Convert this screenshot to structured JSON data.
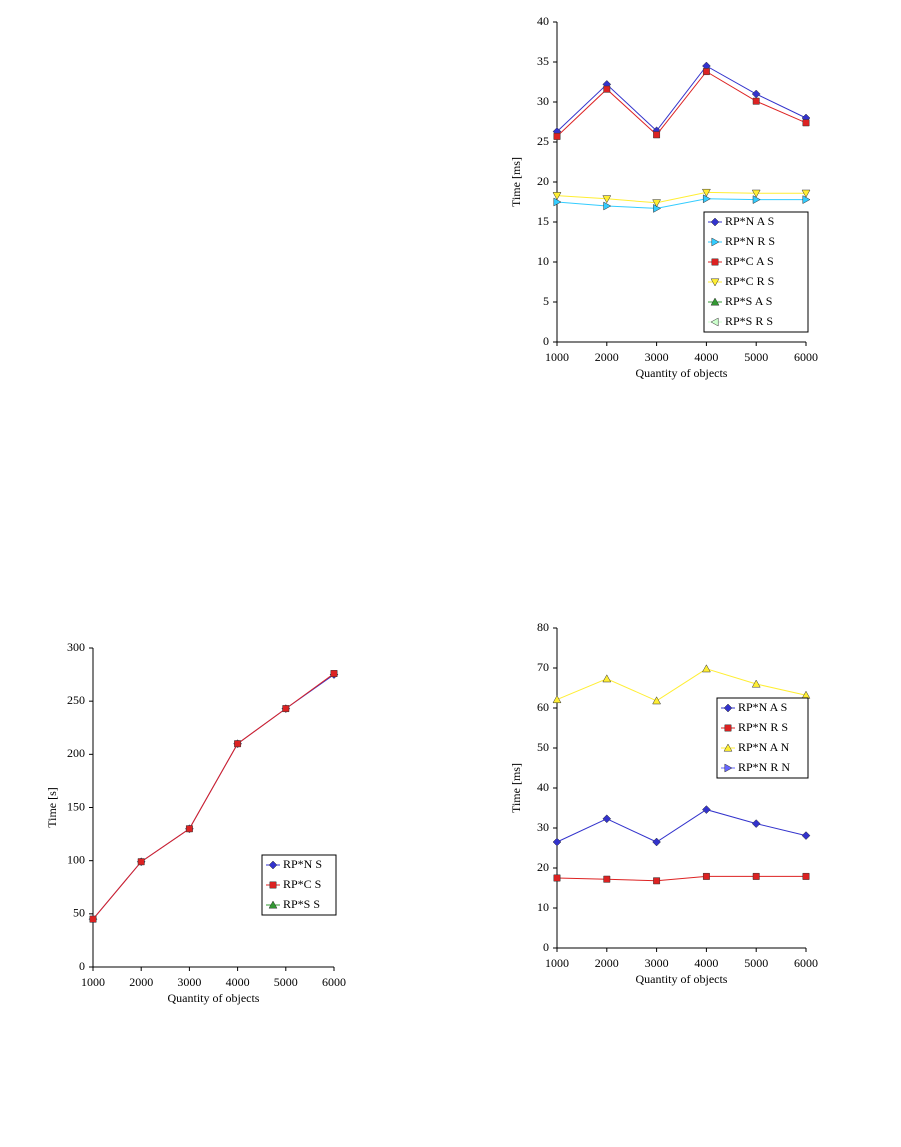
{
  "chart_data": [
    {
      "type": "line",
      "xlabel": "Quantity of objects",
      "ylabel": "Time [ms]",
      "x": [
        1000,
        2000,
        3000,
        4000,
        5000,
        6000
      ],
      "xlim": [
        1000,
        6000
      ],
      "xticks": [
        1000,
        2000,
        3000,
        4000,
        5000,
        6000
      ],
      "ylim": [
        0,
        40
      ],
      "yticks": [
        0,
        5,
        10,
        15,
        20,
        25,
        30,
        35,
        40
      ],
      "legend": "lower right",
      "series": [
        {
          "name": "RP*N A S",
          "color": "#3333cc",
          "marker": "diamond",
          "values": [
            26.3,
            32.2,
            26.4,
            34.5,
            31.0,
            28.0
          ]
        },
        {
          "name": "RP*N R S",
          "color": "#33ccff",
          "marker": "triangle-right",
          "values": [
            17.5,
            17.0,
            16.7,
            17.9,
            17.8,
            17.8
          ]
        },
        {
          "name": "RP*C A S",
          "color": "#dd2222",
          "marker": "square",
          "values": [
            25.7,
            31.6,
            25.9,
            33.8,
            30.1,
            27.4
          ]
        },
        {
          "name": "RP*C R S",
          "color": "#ffee33",
          "marker": "triangle-down",
          "values": [
            18.3,
            17.9,
            17.4,
            18.7,
            18.6,
            18.6
          ]
        },
        {
          "name": "RP*S A S",
          "color": "#339933",
          "marker": "triangle-up",
          "values": [
            null,
            null,
            null,
            null,
            null,
            null
          ]
        },
        {
          "name": "RP*S R S",
          "color": "#ccffcc",
          "marker": "triangle-left",
          "values": [
            null,
            null,
            null,
            null,
            null,
            null
          ]
        }
      ]
    },
    {
      "type": "line",
      "xlabel": "Quantity of objects",
      "ylabel": "Time [s]",
      "x": [
        1000,
        2000,
        3000,
        4000,
        5000,
        6000
      ],
      "xlim": [
        1000,
        6000
      ],
      "xticks": [
        1000,
        2000,
        3000,
        4000,
        5000,
        6000
      ],
      "ylim": [
        0,
        300
      ],
      "yticks": [
        0,
        50,
        100,
        150,
        200,
        250,
        300
      ],
      "legend": "lower right",
      "series": [
        {
          "name": "RP*N S",
          "color": "#3333cc",
          "marker": "diamond",
          "values": [
            45,
            99,
            130,
            210,
            243,
            275
          ]
        },
        {
          "name": "RP*C S",
          "color": "#dd2222",
          "marker": "square",
          "values": [
            45,
            99,
            130,
            210,
            243,
            276
          ]
        },
        {
          "name": "RP*S S",
          "color": "#339933",
          "marker": "triangle-up",
          "values": [
            null,
            null,
            null,
            null,
            null,
            null
          ]
        }
      ]
    },
    {
      "type": "line",
      "xlabel": "Quantity of objects",
      "ylabel": "Time [ms]",
      "x": [
        1000,
        2000,
        3000,
        4000,
        5000,
        6000
      ],
      "xlim": [
        1000,
        6000
      ],
      "xticks": [
        1000,
        2000,
        3000,
        4000,
        5000,
        6000
      ],
      "ylim": [
        0,
        80
      ],
      "yticks": [
        0,
        10,
        20,
        30,
        40,
        50,
        60,
        70,
        80
      ],
      "legend": "center right",
      "series": [
        {
          "name": "RP*N A S",
          "color": "#3333cc",
          "marker": "diamond",
          "values": [
            26.5,
            32.3,
            26.5,
            34.6,
            31.1,
            28.1
          ]
        },
        {
          "name": "RP*N R S",
          "color": "#dd2222",
          "marker": "square",
          "values": [
            17.5,
            17.2,
            16.8,
            17.9,
            17.9,
            17.9
          ]
        },
        {
          "name": "RP*N A N",
          "color": "#ffee33",
          "marker": "triangle-up",
          "values": [
            62.1,
            67.3,
            61.8,
            69.8,
            66.0,
            63.2
          ]
        },
        {
          "name": "RP*N R N",
          "color": "#6666ff",
          "marker": "triangle-right",
          "values": [
            null,
            null,
            null,
            null,
            null,
            null
          ]
        }
      ]
    }
  ]
}
